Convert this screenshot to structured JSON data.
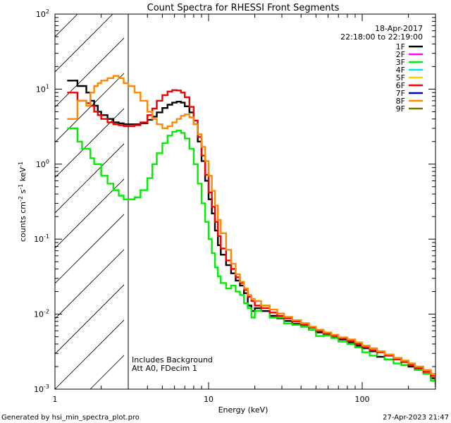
{
  "chart_data": {
    "type": "line",
    "title": "Count Spectra for RHESSI Front Segments",
    "xlabel": "Energy (keV)",
    "ylabel_base": "counts cm",
    "ylabel_exp1": "-2",
    "ylabel_mid1": " s",
    "ylabel_exp2": "-1",
    "ylabel_mid2": " keV",
    "ylabel_exp3": "-1",
    "xscale": "log",
    "yscale": "log",
    "xlim": [
      1,
      300
    ],
    "ylim": [
      0.001,
      100
    ],
    "x_ticks": [
      {
        "value": 1,
        "label": "1"
      },
      {
        "value": 10,
        "label": "10"
      },
      {
        "value": 100,
        "label": "100"
      }
    ],
    "y_ticks": [
      {
        "value": 100,
        "base": "10",
        "exp": "2"
      },
      {
        "value": 10,
        "base": "10",
        "exp": "1"
      },
      {
        "value": 1,
        "base": "10",
        "exp": "0"
      },
      {
        "value": 0.1,
        "base": "10",
        "exp": "-1"
      },
      {
        "value": 0.01,
        "base": "10",
        "exp": "-2"
      },
      {
        "value": 0.001,
        "base": "10",
        "exp": "-3"
      }
    ],
    "date": "18-Apr-2017",
    "time_range": "22:18:00 to 22:19:00",
    "hatched_region": {
      "x_min": 1,
      "x_max": 3
    },
    "notes": [
      "Includes Background",
      "Att A0, FDecim 1"
    ],
    "legend_position": "top-right",
    "legend": [
      {
        "name": "1F",
        "color": "#000000"
      },
      {
        "name": "2F",
        "color": "#ff00ff"
      },
      {
        "name": "3F",
        "color": "#00ee00"
      },
      {
        "name": "4F",
        "color": "#00e5ee"
      },
      {
        "name": "5F",
        "color": "#ffcc00"
      },
      {
        "name": "6F",
        "color": "#ee0000"
      },
      {
        "name": "7F",
        "color": "#0000cc"
      },
      {
        "name": "8F",
        "color": "#ff8800"
      },
      {
        "name": "9F",
        "color": "#777700"
      }
    ],
    "series": [
      {
        "name": "1F",
        "color": "#000000",
        "width": 2.4,
        "x": [
          1.2,
          1.3,
          1.4,
          1.5,
          1.6,
          1.7,
          1.8,
          1.9,
          2.0,
          2.2,
          2.4,
          2.6,
          2.8,
          3.0,
          3.3,
          3.6,
          4.0,
          4.3,
          4.6,
          5.0,
          5.4,
          5.8,
          6.2,
          6.6,
          7.0,
          7.5,
          8.0,
          8.5,
          9.0,
          9.5,
          10,
          10.5,
          11,
          11.5,
          12,
          13,
          14,
          15,
          16,
          17,
          18,
          19,
          20,
          22,
          25,
          28,
          31,
          35,
          40,
          45,
          50,
          56,
          63,
          70,
          80,
          90,
          100,
          112,
          125,
          140,
          160,
          180,
          200,
          220,
          250,
          280,
          300
        ],
        "y": [
          13,
          13,
          11,
          11,
          9,
          7,
          6,
          5,
          4.5,
          4,
          3.6,
          3.5,
          3.4,
          3.4,
          3.4,
          3.5,
          3.9,
          4.3,
          4.9,
          5.6,
          6.2,
          6.6,
          6.8,
          6.6,
          5.9,
          4.9,
          3.4,
          2.0,
          1.1,
          0.6,
          0.34,
          0.22,
          0.13,
          0.083,
          0.062,
          0.045,
          0.035,
          0.028,
          0.024,
          0.019,
          0.013,
          0.011,
          0.012,
          0.011,
          0.0095,
          0.0088,
          0.0081,
          0.0074,
          0.0068,
          0.0062,
          0.0057,
          0.0053,
          0.0049,
          0.0046,
          0.0042,
          0.0038,
          0.0035,
          0.0032,
          0.0027,
          0.0025,
          0.0026,
          0.0021,
          0.002,
          0.0018,
          0.0016,
          0.0014,
          0.0012
        ]
      },
      {
        "name": "3F",
        "color": "#00ee00",
        "width": 2.4,
        "x": [
          1.2,
          1.3,
          1.4,
          1.5,
          1.6,
          1.7,
          1.8,
          1.9,
          2.0,
          2.2,
          2.4,
          2.6,
          2.8,
          3.0,
          3.3,
          3.6,
          4.0,
          4.3,
          4.6,
          5.0,
          5.4,
          5.8,
          6.2,
          6.6,
          7.0,
          7.5,
          8.0,
          8.5,
          9.0,
          9.5,
          10,
          10.5,
          11,
          11.5,
          12,
          13,
          14,
          15,
          16,
          17,
          18,
          19,
          20,
          22,
          25,
          28,
          31,
          35,
          40,
          45,
          50,
          56,
          63,
          70,
          80,
          90,
          100,
          112,
          125,
          140,
          160,
          180,
          200,
          220,
          250,
          280,
          300
        ],
        "y": [
          3.0,
          3.0,
          2.0,
          1.6,
          1.6,
          1.2,
          1.0,
          1.0,
          0.7,
          0.55,
          0.45,
          0.38,
          0.34,
          0.34,
          0.36,
          0.45,
          0.65,
          1.0,
          1.4,
          1.9,
          2.4,
          2.7,
          2.8,
          2.6,
          2.2,
          1.6,
          1.0,
          0.55,
          0.3,
          0.17,
          0.1,
          0.065,
          0.042,
          0.032,
          0.026,
          0.022,
          0.024,
          0.02,
          0.018,
          0.014,
          0.012,
          0.009,
          0.011,
          0.013,
          0.009,
          0.009,
          0.0075,
          0.0072,
          0.0068,
          0.0062,
          0.0051,
          0.0052,
          0.0048,
          0.0043,
          0.004,
          0.0036,
          0.0031,
          0.0028,
          0.0032,
          0.0025,
          0.0022,
          0.0021,
          0.0022,
          0.0018,
          0.0016,
          0.0013,
          0.0011
        ]
      },
      {
        "name": "6F",
        "color": "#ee0000",
        "width": 2.4,
        "x": [
          1.2,
          1.3,
          1.4,
          1.5,
          1.6,
          1.7,
          1.8,
          1.9,
          2.0,
          2.2,
          2.4,
          2.6,
          2.8,
          3.0,
          3.3,
          3.6,
          4.0,
          4.3,
          4.6,
          5.0,
          5.4,
          5.8,
          6.2,
          6.6,
          7.0,
          7.5,
          8.0,
          8.5,
          9.0,
          9.5,
          10,
          10.5,
          11,
          11.5,
          12,
          13,
          14,
          15,
          16,
          17,
          18,
          19,
          20,
          22,
          25,
          28,
          31,
          35,
          40,
          45,
          50,
          56,
          63,
          70,
          80,
          90,
          100,
          112,
          125,
          140,
          160,
          180,
          200,
          220,
          250,
          280,
          300
        ],
        "y": [
          9,
          9,
          7,
          7,
          6.5,
          6,
          5,
          4.5,
          4,
          3.6,
          3.4,
          3.3,
          3.2,
          3.2,
          3.3,
          3.6,
          4.5,
          5.5,
          7,
          8.3,
          9.3,
          9.7,
          9.6,
          9.0,
          7.8,
          5.8,
          3.8,
          2.3,
          1.3,
          0.72,
          0.42,
          0.27,
          0.17,
          0.11,
          0.075,
          0.052,
          0.04,
          0.031,
          0.026,
          0.021,
          0.017,
          0.015,
          0.013,
          0.012,
          0.0105,
          0.0095,
          0.0088,
          0.008,
          0.0072,
          0.0066,
          0.006,
          0.0055,
          0.0052,
          0.0048,
          0.0044,
          0.004,
          0.0036,
          0.0033,
          0.0031,
          0.0028,
          0.0025,
          0.0023,
          0.0021,
          0.0019,
          0.0017,
          0.0015,
          0.0013
        ]
      },
      {
        "name": "8F",
        "color": "#ff8800",
        "width": 2.4,
        "x": [
          1.2,
          1.3,
          1.4,
          1.5,
          1.6,
          1.7,
          1.8,
          1.9,
          2.0,
          2.2,
          2.4,
          2.6,
          2.8,
          3.0,
          3.3,
          3.6,
          4.0,
          4.3,
          4.6,
          5.0,
          5.4,
          5.8,
          6.2,
          6.6,
          7.0,
          7.5,
          8.0,
          8.5,
          9.0,
          9.5,
          10,
          10.5,
          11,
          11.5,
          12,
          13,
          14,
          15,
          16,
          17,
          18,
          19,
          20,
          22,
          25,
          28,
          31,
          35,
          40,
          45,
          50,
          56,
          63,
          70,
          80,
          90,
          100,
          112,
          125,
          140,
          160,
          180,
          200,
          220,
          250,
          280,
          300
        ],
        "y": [
          4,
          4,
          7,
          7,
          6,
          9,
          11,
          12,
          13,
          14,
          15,
          14,
          12,
          11,
          9,
          7,
          5,
          4,
          3.4,
          3.0,
          3.2,
          3.6,
          4.0,
          4.4,
          4.6,
          4.2,
          3.4,
          2.5,
          1.7,
          1.1,
          0.7,
          0.44,
          0.28,
          0.18,
          0.12,
          0.072,
          0.047,
          0.034,
          0.027,
          0.022,
          0.018,
          0.016,
          0.015,
          0.013,
          0.0115,
          0.0102,
          0.0092,
          0.0083,
          0.0076,
          0.0068,
          0.0062,
          0.0057,
          0.0053,
          0.0049,
          0.0046,
          0.0042,
          0.0038,
          0.0035,
          0.0032,
          0.0029,
          0.0026,
          0.0024,
          0.0022,
          0.002,
          0.0018,
          0.0016,
          0.0014
        ]
      }
    ]
  },
  "footer": {
    "generated_by": "Generated by hsi_min_spectra_plot.pro",
    "timestamp": "27-Apr-2023 21:47"
  }
}
